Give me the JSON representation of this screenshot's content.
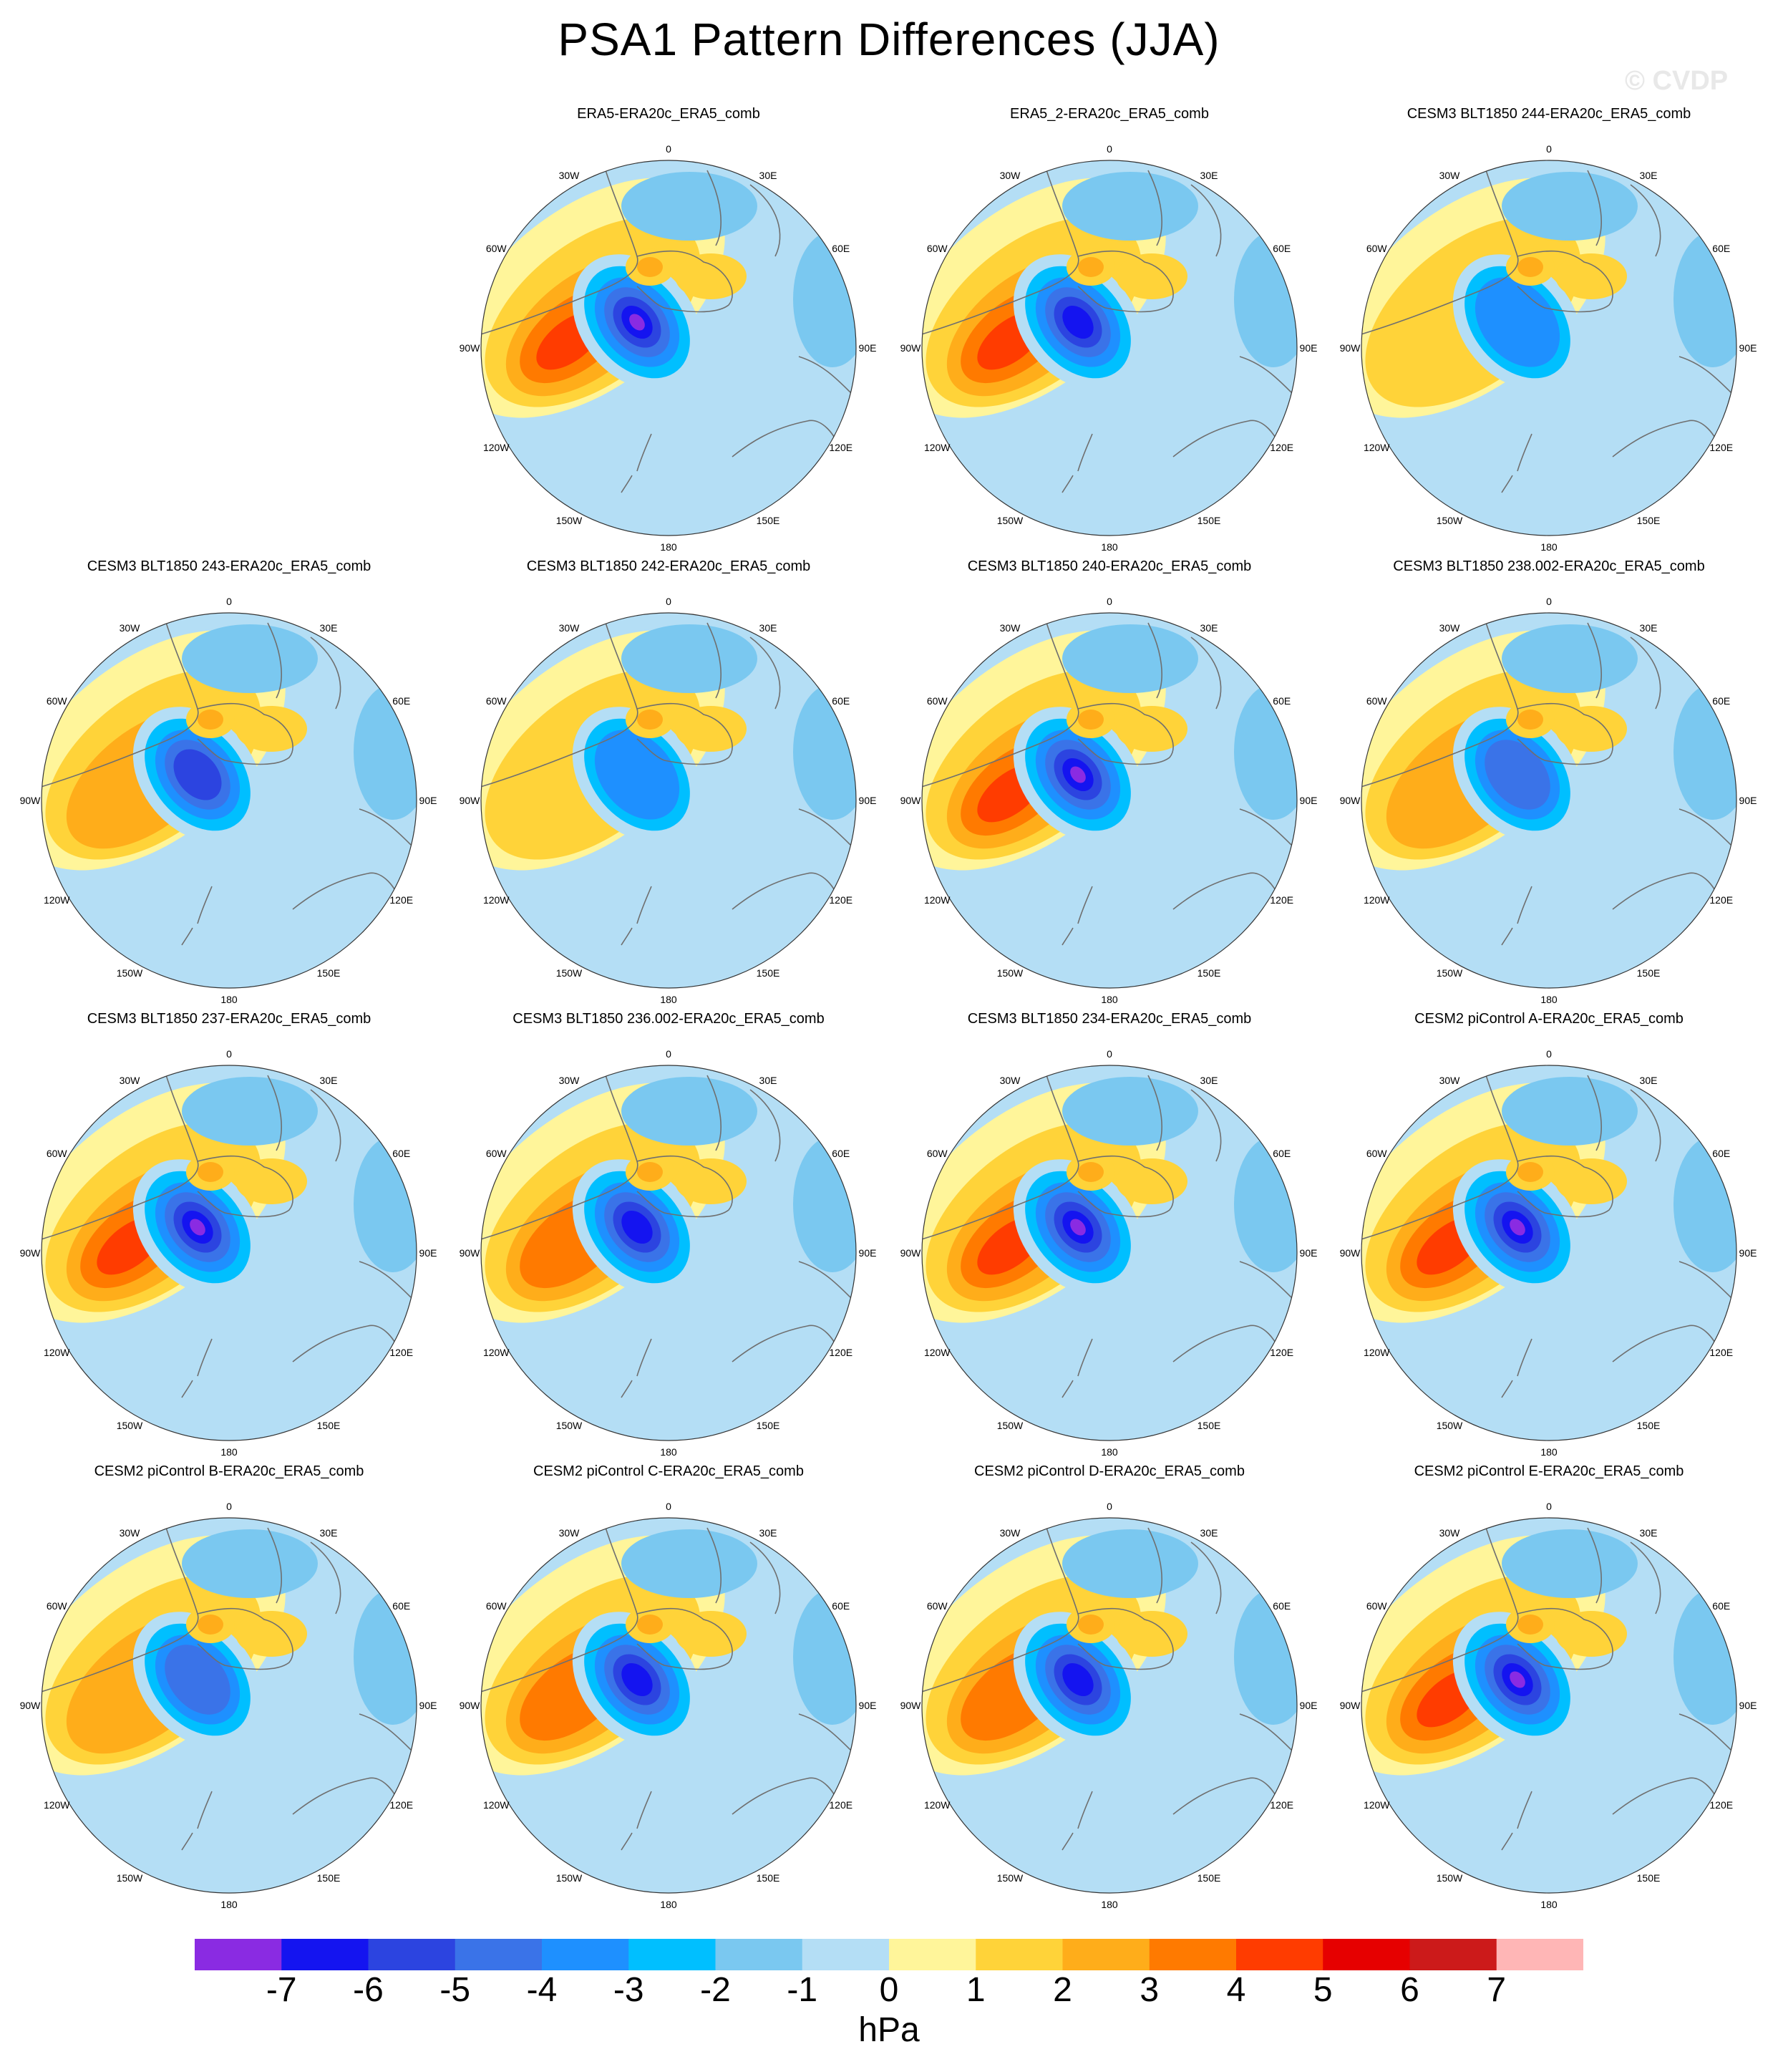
{
  "title": "PSA1 Pattern Differences (JJA)",
  "watermark": "© CVDP",
  "colorbar": {
    "units": "hPa",
    "labels": [
      "-7",
      "-6",
      "-5",
      "-4",
      "-3",
      "-2",
      "-1",
      "0",
      "1",
      "2",
      "3",
      "4",
      "5",
      "6",
      "7"
    ],
    "colors": [
      "#8a2be2",
      "#1414f0",
      "#2c44e0",
      "#3a73e8",
      "#1e90ff",
      "#00bfff",
      "#7ac8f0",
      "#b4def5",
      "#fff59a",
      "#ffd339",
      "#ffad1a",
      "#ff7a00",
      "#ff3c00",
      "#e60000",
      "#cc1a1a",
      "#ffb6b6"
    ]
  },
  "map_labels": {
    "top": "0",
    "bottom": "180",
    "upper_left": "30W",
    "upper_right": "30E",
    "left_upper": "60W",
    "right_upper": "60E",
    "left_mid": "90W",
    "right_mid": "90E",
    "left_lower": "120W",
    "right_lower": "120E",
    "lower_left": "150W",
    "lower_right": "150E"
  },
  "panels": [
    {
      "title": "ERA5-ERA20c_ERA5_comb",
      "strength": 1.0
    },
    {
      "title": "ERA5_2-ERA20c_ERA5_comb",
      "strength": 0.9
    },
    {
      "title": "CESM3 BLT1850 244-ERA20c_ERA5_comb",
      "strength": 0.35
    },
    {
      "title": "CESM3 BLT1850 243-ERA20c_ERA5_comb",
      "strength": 0.6
    },
    {
      "title": "CESM3 BLT1850 242-ERA20c_ERA5_comb",
      "strength": 0.3
    },
    {
      "title": "CESM3 BLT1850 240-ERA20c_ERA5_comb",
      "strength": 1.0
    },
    {
      "title": "CESM3 BLT1850 238.002-ERA20c_ERA5_comb",
      "strength": 0.55
    },
    {
      "title": "CESM3 BLT1850 237-ERA20c_ERA5_comb",
      "strength": 1.0
    },
    {
      "title": "CESM3 BLT1850 236.002-ERA20c_ERA5_comb",
      "strength": 0.75
    },
    {
      "title": "CESM3 BLT1850 234-ERA20c_ERA5_comb",
      "strength": 1.0
    },
    {
      "title": "CESM2 piControl A-ERA20c_ERA5_comb",
      "strength": 1.0
    },
    {
      "title": "CESM2 piControl B-ERA20c_ERA5_comb",
      "strength": 0.5
    },
    {
      "title": "CESM2 piControl C-ERA20c_ERA5_comb",
      "strength": 0.85
    },
    {
      "title": "CESM2 piControl D-ERA20c_ERA5_comb",
      "strength": 0.85
    },
    {
      "title": "CESM2 piControl E-ERA20c_ERA5_comb",
      "strength": 0.95
    }
  ]
}
